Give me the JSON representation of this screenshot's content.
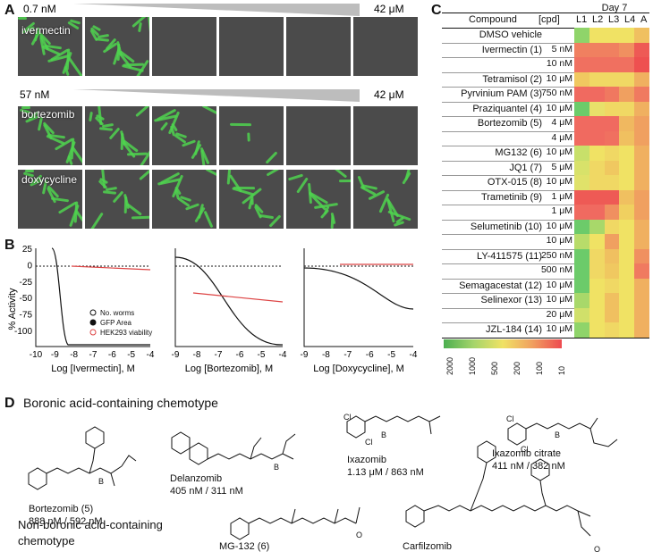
{
  "panel_labels": {
    "a": "A",
    "b": "B",
    "c": "C",
    "d": "D"
  },
  "panel_a": {
    "rows": [
      {
        "start": "0.7 nM",
        "end": "42 μM",
        "compound": "ivermectin"
      },
      {
        "start": "57 nM",
        "end": "42 μM",
        "compound": "bortezomib"
      },
      {
        "start": "",
        "end": "",
        "compound": "doxycycline"
      }
    ]
  },
  "panel_b": {
    "ylabel": "% Activity",
    "legend": [
      "No. worms",
      "GFP Area",
      "HEK293 viability"
    ],
    "xlabels": [
      "Log [Ivermectin], M",
      "Log [Bortezomib], M",
      "Log [Doxycycline], M"
    ],
    "yticks": [
      "25",
      "0",
      "-25",
      "-50",
      "-75",
      "-100"
    ]
  },
  "panel_c": {
    "title": "Day 7",
    "headers": [
      "Compound",
      "[cpd]",
      "L1",
      "L2",
      "L3",
      "L4",
      "A"
    ],
    "rows": [
      {
        "name": "DMSO vehicle",
        "conc": "",
        "colors": [
          "#8fd46a",
          "#f0e264",
          "#f0e264",
          "#f0e264",
          "#f0c060"
        ]
      },
      {
        "name": "Ivermectin (1)",
        "conc": "5 nM",
        "colors": [
          "#f08060",
          "#f08060",
          "#f08060",
          "#f09060",
          "#ee5a55"
        ]
      },
      {
        "name": "",
        "conc": "10 nM",
        "colors": [
          "#f07060",
          "#f07060",
          "#f07060",
          "#f07060",
          "#ee5050"
        ]
      },
      {
        "name": "Tetramisol (2)",
        "conc": "10 μM",
        "colors": [
          "#f0c860",
          "#f0d864",
          "#f0d864",
          "#f0d864",
          "#f0b060"
        ]
      },
      {
        "name": "Pyrvinium PAM (3)",
        "conc": "750 nM",
        "colors": [
          "#f06a60",
          "#f06a60",
          "#f07860",
          "#f0a060",
          "#f07a60"
        ]
      },
      {
        "name": "Praziquantel (4)",
        "conc": "10 μM",
        "colors": [
          "#6ccb6a",
          "#e8e06a",
          "#f0d864",
          "#f0d864",
          "#f0b060"
        ]
      },
      {
        "name": "Bortezomib (5)",
        "conc": "4 μM",
        "colors": [
          "#f06a60",
          "#f06a60",
          "#f06a60",
          "#f0b860",
          "#f0a060"
        ]
      },
      {
        "name": "",
        "conc": "4 μM",
        "colors": [
          "#f06a60",
          "#f06a60",
          "#f07060",
          "#f0c060",
          "#f0a060"
        ]
      },
      {
        "name": "MG132 (6)",
        "conc": "10 μM",
        "colors": [
          "#c8e06a",
          "#f0e264",
          "#f0d864",
          "#f0e264",
          "#f0b060"
        ]
      },
      {
        "name": "JQ1 (7)",
        "conc": "5 μM",
        "colors": [
          "#d8e26a",
          "#f0d864",
          "#f0c860",
          "#f0e264",
          "#f0b060"
        ]
      },
      {
        "name": "OTX-015 (8)",
        "conc": "10 μM",
        "colors": [
          "#e0e26a",
          "#f0d864",
          "#f0d864",
          "#f0e264",
          "#f0b060"
        ]
      },
      {
        "name": "Trametinib (9)",
        "conc": "1 μM",
        "colors": [
          "#ee5a55",
          "#ee5a55",
          "#ee5a55",
          "#f0c060",
          "#f0a060"
        ]
      },
      {
        "name": "",
        "conc": "1 μM",
        "colors": [
          "#f06a60",
          "#f06a60",
          "#f09060",
          "#f0d060",
          "#f0a060"
        ]
      },
      {
        "name": "Selumetinib (10)",
        "conc": "10 μM",
        "colors": [
          "#6ccb6a",
          "#a8d86a",
          "#f0d864",
          "#f0e264",
          "#f0b060"
        ]
      },
      {
        "name": "",
        "conc": "10 μM",
        "colors": [
          "#b8dc6a",
          "#f0e264",
          "#f0a060",
          "#f0e264",
          "#f0b060"
        ]
      },
      {
        "name": "LY-411575 (11)",
        "conc": "250 nM",
        "colors": [
          "#6ccb6a",
          "#f0d864",
          "#f0c060",
          "#f0e264",
          "#f09060"
        ]
      },
      {
        "name": "",
        "conc": "500 nM",
        "colors": [
          "#6ccb6a",
          "#f0d864",
          "#f0c860",
          "#f0e264",
          "#f07a60"
        ]
      },
      {
        "name": "Semagacestat (12)",
        "conc": "10 μM",
        "colors": [
          "#6ccb6a",
          "#f0e264",
          "#f0d864",
          "#f0e264",
          "#f0b060"
        ]
      },
      {
        "name": "Selinexor (13)",
        "conc": "10 μM",
        "colors": [
          "#a8d86a",
          "#f0e264",
          "#f0c060",
          "#f0e264",
          "#f0b060"
        ]
      },
      {
        "name": "",
        "conc": "20 μM",
        "colors": [
          "#d0e06a",
          "#f0e264",
          "#f0c060",
          "#f0e264",
          "#f0b060"
        ]
      },
      {
        "name": "JZL-184 (14)",
        "conc": "10 μM",
        "colors": [
          "#8fd46a",
          "#f0e264",
          "#f0d864",
          "#f0e264",
          "#f0b060"
        ]
      }
    ],
    "scale": [
      "2000",
      "1000",
      "500",
      "200",
      "100",
      "10"
    ]
  },
  "panel_d": {
    "title1": "Boronic acid-containing chemotype",
    "title2a": "Non-boronic acid-containing",
    "title2b": "chemotype",
    "compounds": [
      {
        "name": "Bortezomib (5)",
        "value": "888 nM / 592 nM"
      },
      {
        "name": "Delanzomib",
        "value": "405 nM / 311 nM"
      },
      {
        "name": "Ixazomib",
        "value": "1.13 μM / 863 nM"
      },
      {
        "name": "Ixazomib citrate",
        "value": "411 nM / 382 nM"
      },
      {
        "name": "MG-132 (6)",
        "value": ""
      },
      {
        "name": "Carfilzomib",
        "value": ""
      }
    ]
  }
}
